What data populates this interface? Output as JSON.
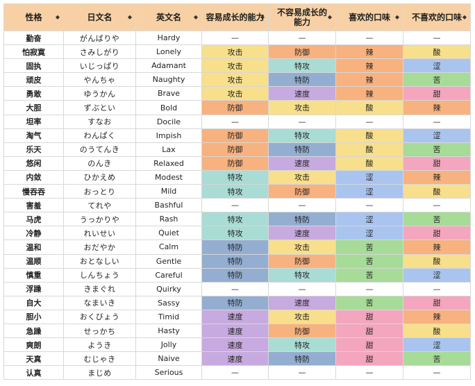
{
  "colors": {
    "header_bg": "#f7d1a5",
    "攻击": "#f8df8c",
    "防御": "#f7b27f",
    "特攻": "#a9dcd4",
    "特防": "#93aed0",
    "速度": "#c7aadf",
    "辣": "#f7b27f",
    "酸": "#f8df8c",
    "涩": "#a9c4ef",
    "苦": "#a6db98",
    "甜": "#f3a6bd",
    "none": "#ffffff"
  },
  "headers": [
    "性格",
    "日文名",
    "英文名",
    "容易成长的能力",
    "不容易成长的能力",
    "喜欢的口味",
    "不喜欢的口味"
  ],
  "rows": [
    [
      "勤奋",
      "がんばりや",
      "Hardy",
      "—",
      "—",
      "—",
      "—"
    ],
    [
      "怕寂寞",
      "さみしがり",
      "Lonely",
      "攻击",
      "防御",
      "辣",
      "酸"
    ],
    [
      "固执",
      "いじっぱり",
      "Adamant",
      "攻击",
      "特攻",
      "辣",
      "涩"
    ],
    [
      "顽皮",
      "やんちゃ",
      "Naughty",
      "攻击",
      "特防",
      "辣",
      "苦"
    ],
    [
      "勇敢",
      "ゆうかん",
      "Brave",
      "攻击",
      "速度",
      "辣",
      "甜"
    ],
    [
      "大胆",
      "ずぶとい",
      "Bold",
      "防御",
      "攻击",
      "酸",
      "辣"
    ],
    [
      "坦率",
      "すなお",
      "Docile",
      "—",
      "—",
      "—",
      "—"
    ],
    [
      "淘气",
      "わんぱく",
      "Impish",
      "防御",
      "特攻",
      "酸",
      "涩"
    ],
    [
      "乐天",
      "のうてんき",
      "Lax",
      "防御",
      "特防",
      "酸",
      "苦"
    ],
    [
      "悠闲",
      "のんき",
      "Relaxed",
      "防御",
      "速度",
      "酸",
      "甜"
    ],
    [
      "内敛",
      "ひかえめ",
      "Modest",
      "特攻",
      "攻击",
      "涩",
      "辣"
    ],
    [
      "慢吞吞",
      "おっとり",
      "Mild",
      "特攻",
      "防御",
      "涩",
      "酸"
    ],
    [
      "害羞",
      "てれや",
      "Bashful",
      "—",
      "—",
      "—",
      "—"
    ],
    [
      "马虎",
      "うっかりや",
      "Rash",
      "特攻",
      "特防",
      "涩",
      "苦"
    ],
    [
      "冷静",
      "れいせい",
      "Quiet",
      "特攻",
      "速度",
      "涩",
      "甜"
    ],
    [
      "温和",
      "おだやか",
      "Calm",
      "特防",
      "攻击",
      "苦",
      "辣"
    ],
    [
      "温顺",
      "おとなしい",
      "Gentle",
      "特防",
      "防御",
      "苦",
      "酸"
    ],
    [
      "慎重",
      "しんちょう",
      "Careful",
      "特防",
      "特攻",
      "苦",
      "涩"
    ],
    [
      "浮躁",
      "きまぐれ",
      "Quirky",
      "—",
      "—",
      "—",
      "—"
    ],
    [
      "自大",
      "なまいき",
      "Sassy",
      "特防",
      "速度",
      "苦",
      "甜"
    ],
    [
      "胆小",
      "おくびょう",
      "Timid",
      "速度",
      "攻击",
      "甜",
      "辣"
    ],
    [
      "急躁",
      "せっかち",
      "Hasty",
      "速度",
      "防御",
      "甜",
      "酸"
    ],
    [
      "爽朗",
      "ようき",
      "Jolly",
      "速度",
      "特攻",
      "甜",
      "涩"
    ],
    [
      "天真",
      "むじゃき",
      "Naive",
      "速度",
      "特防",
      "甜",
      "苦"
    ],
    [
      "认真",
      "まじめ",
      "Serious",
      "—",
      "—",
      "—",
      "—"
    ]
  ]
}
